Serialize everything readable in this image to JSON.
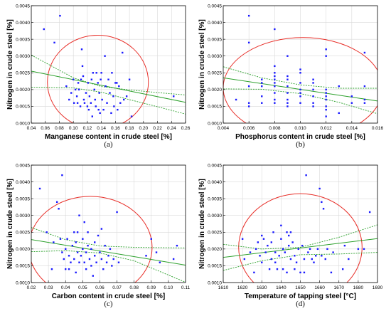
{
  "colors": {
    "points": "#1a1aff",
    "fit": "#2ca02c",
    "ellipse": "#e8302a",
    "grid": "#d9d9d9",
    "frame": "#000000"
  },
  "chart_data": [
    {
      "type": "scatter",
      "panel_label": "(a)",
      "xlabel": "Manganese content in crude steel [%]",
      "ylabel": "Nitrogen in crude steel [%]",
      "xlim": [
        0.04,
        0.26
      ],
      "ylim": [
        0.001,
        0.0045
      ],
      "xticks": [
        "0.04",
        "0.06",
        "0.08",
        "0.10",
        "0.12",
        "0.14",
        "0.16",
        "0.18",
        "0.20",
        "0.22",
        "0.24",
        "0.26"
      ],
      "yticks": [
        "0.0010",
        "0.0015",
        "0.0020",
        "0.0025",
        "0.0030",
        "0.0035",
        "0.0040",
        "0.0045"
      ],
      "grid": true,
      "regression": [
        [
          0.04,
          0.00255
        ],
        [
          0.26,
          0.00162
        ]
      ],
      "confidence_upper": [
        [
          0.04,
          0.00303
        ],
        [
          0.1,
          0.00235
        ],
        [
          0.14,
          0.00209
        ],
        [
          0.18,
          0.00199
        ],
        [
          0.22,
          0.00191
        ],
        [
          0.26,
          0.00184
        ]
      ],
      "confidence_lower": [
        [
          0.04,
          0.00207
        ],
        [
          0.1,
          0.00205
        ],
        [
          0.14,
          0.00192
        ],
        [
          0.18,
          0.0017
        ],
        [
          0.22,
          0.00149
        ],
        [
          0.26,
          0.00127
        ]
      ],
      "ellipse": {
        "cx": 0.135,
        "cy": 0.00222,
        "rx": 0.072,
        "ry": 0.0014
      },
      "points": [
        [
          0.058,
          0.0038
        ],
        [
          0.073,
          0.0034
        ],
        [
          0.081,
          0.0042
        ],
        [
          0.09,
          0.0021
        ],
        [
          0.094,
          0.0017
        ],
        [
          0.097,
          0.0019
        ],
        [
          0.1,
          0.0023
        ],
        [
          0.101,
          0.0016
        ],
        [
          0.103,
          0.002
        ],
        [
          0.105,
          0.0018
        ],
        [
          0.106,
          0.0016
        ],
        [
          0.107,
          0.0022
        ],
        [
          0.108,
          0.002
        ],
        [
          0.11,
          0.0015
        ],
        [
          0.111,
          0.0023
        ],
        [
          0.112,
          0.0032
        ],
        [
          0.113,
          0.0027
        ],
        [
          0.114,
          0.0024
        ],
        [
          0.115,
          0.0017
        ],
        [
          0.116,
          0.0016
        ],
        [
          0.118,
          0.0019
        ],
        [
          0.12,
          0.0015
        ],
        [
          0.121,
          0.0022
        ],
        [
          0.122,
          0.0014
        ],
        [
          0.123,
          0.0018
        ],
        [
          0.125,
          0.0016
        ],
        [
          0.126,
          0.0023
        ],
        [
          0.127,
          0.0012
        ],
        [
          0.128,
          0.0025
        ],
        [
          0.13,
          0.002
        ],
        [
          0.131,
          0.0017
        ],
        [
          0.132,
          0.0015
        ],
        [
          0.133,
          0.0025
        ],
        [
          0.135,
          0.0022
        ],
        [
          0.136,
          0.0014
        ],
        [
          0.137,
          0.0019
        ],
        [
          0.138,
          0.0013
        ],
        [
          0.139,
          0.0023
        ],
        [
          0.14,
          0.0025
        ],
        [
          0.141,
          0.0017
        ],
        [
          0.143,
          0.0014
        ],
        [
          0.145,
          0.003
        ],
        [
          0.146,
          0.0021
        ],
        [
          0.148,
          0.0016
        ],
        [
          0.15,
          0.0023
        ],
        [
          0.152,
          0.0019
        ],
        [
          0.154,
          0.0013
        ],
        [
          0.155,
          0.0025
        ],
        [
          0.157,
          0.0018
        ],
        [
          0.158,
          0.0015
        ],
        [
          0.16,
          0.0022
        ],
        [
          0.162,
          0.0022
        ],
        [
          0.163,
          0.0014
        ],
        [
          0.165,
          0.0021
        ],
        [
          0.167,
          0.0016
        ],
        [
          0.17,
          0.0031
        ],
        [
          0.172,
          0.0017
        ],
        [
          0.176,
          0.0018
        ],
        [
          0.18,
          0.0023
        ],
        [
          0.183,
          0.0012
        ],
        [
          0.243,
          0.0018
        ]
      ]
    },
    {
      "type": "scatter",
      "panel_label": "(b)",
      "xlabel": "Phosphorus content in crude steel [%]",
      "ylabel": "Nitrogen in crude steel [%]",
      "xlim": [
        0.004,
        0.016
      ],
      "ylim": [
        0.001,
        0.0045
      ],
      "xticks": [
        "0.004",
        "0.006",
        "0.008",
        "0.010",
        "0.012",
        "0.014",
        "0.016"
      ],
      "yticks": [
        "0.0010",
        "0.0015",
        "0.0020",
        "0.0025",
        "0.0030",
        "0.0035",
        "0.0040",
        "0.0045"
      ],
      "grid": true,
      "regression": [
        [
          0.004,
          0.00235
        ],
        [
          0.016,
          0.00166
        ]
      ],
      "confidence_upper": [
        [
          0.004,
          0.00268
        ],
        [
          0.007,
          0.00235
        ],
        [
          0.01,
          0.00214
        ],
        [
          0.013,
          0.00204
        ],
        [
          0.016,
          0.00204
        ]
      ],
      "confidence_lower": [
        [
          0.004,
          0.00202
        ],
        [
          0.007,
          0.00201
        ],
        [
          0.01,
          0.00188
        ],
        [
          0.013,
          0.00162
        ],
        [
          0.016,
          0.00128
        ]
      ],
      "ellipse": {
        "cx": 0.0102,
        "cy": 0.00205,
        "rx": 0.0062,
        "ry": 0.0015
      },
      "points": [
        [
          0.005,
          0.0017
        ],
        [
          0.006,
          0.0042
        ],
        [
          0.006,
          0.0034
        ],
        [
          0.006,
          0.0021
        ],
        [
          0.006,
          0.0016
        ],
        [
          0.006,
          0.0015
        ],
        [
          0.007,
          0.0023
        ],
        [
          0.007,
          0.0022
        ],
        [
          0.007,
          0.0021
        ],
        [
          0.007,
          0.0018
        ],
        [
          0.007,
          0.0016
        ],
        [
          0.008,
          0.0038
        ],
        [
          0.008,
          0.0027
        ],
        [
          0.008,
          0.0025
        ],
        [
          0.008,
          0.0024
        ],
        [
          0.008,
          0.0023
        ],
        [
          0.008,
          0.0022
        ],
        [
          0.008,
          0.0021
        ],
        [
          0.008,
          0.0019
        ],
        [
          0.008,
          0.0017
        ],
        [
          0.008,
          0.0016
        ],
        [
          0.009,
          0.003
        ],
        [
          0.009,
          0.0024
        ],
        [
          0.009,
          0.0023
        ],
        [
          0.009,
          0.0021
        ],
        [
          0.009,
          0.0019
        ],
        [
          0.009,
          0.0017
        ],
        [
          0.009,
          0.0016
        ],
        [
          0.009,
          0.0015
        ],
        [
          0.01,
          0.0026
        ],
        [
          0.01,
          0.0025
        ],
        [
          0.01,
          0.0022
        ],
        [
          0.01,
          0.002
        ],
        [
          0.01,
          0.0019
        ],
        [
          0.01,
          0.0018
        ],
        [
          0.01,
          0.0016
        ],
        [
          0.011,
          0.0023
        ],
        [
          0.011,
          0.0022
        ],
        [
          0.011,
          0.002
        ],
        [
          0.011,
          0.0018
        ],
        [
          0.011,
          0.0016
        ],
        [
          0.011,
          0.0015
        ],
        [
          0.012,
          0.0032
        ],
        [
          0.012,
          0.003
        ],
        [
          0.012,
          0.002
        ],
        [
          0.012,
          0.0019
        ],
        [
          0.012,
          0.0018
        ],
        [
          0.012,
          0.0017
        ],
        [
          0.012,
          0.0015
        ],
        [
          0.012,
          0.0014
        ],
        [
          0.012,
          0.0012
        ],
        [
          0.013,
          0.0021
        ],
        [
          0.013,
          0.0013
        ],
        [
          0.014,
          0.0018
        ],
        [
          0.014,
          0.0016
        ],
        [
          0.015,
          0.0031
        ],
        [
          0.015,
          0.0021
        ],
        [
          0.015,
          0.0017
        ],
        [
          0.015,
          0.0016
        ]
      ]
    },
    {
      "type": "scatter",
      "panel_label": "(c)",
      "xlabel": "Carbon content in crude steel [%]",
      "ylabel": "Nitrogen in crude steel [%]",
      "xlim": [
        0.02,
        0.11
      ],
      "ylim": [
        0.001,
        0.0045
      ],
      "xticks": [
        "0.02",
        "0.03",
        "0.04",
        "0.05",
        "0.06",
        "0.07",
        "0.08",
        "0.09",
        "0.10",
        "0.11"
      ],
      "yticks": [
        "0.0010",
        "0.0015",
        "0.0020",
        "0.0025",
        "0.0030",
        "0.0035",
        "0.0040",
        "0.0045"
      ],
      "grid": true,
      "regression": [
        [
          0.02,
          0.00228
        ],
        [
          0.11,
          0.00152
        ]
      ],
      "confidence_upper": [
        [
          0.02,
          0.00264
        ],
        [
          0.04,
          0.00228
        ],
        [
          0.06,
          0.00209
        ],
        [
          0.08,
          0.00205
        ],
        [
          0.11,
          0.00203
        ]
      ],
      "confidence_lower": [
        [
          0.02,
          0.00192
        ],
        [
          0.04,
          0.00195
        ],
        [
          0.06,
          0.00188
        ],
        [
          0.08,
          0.00165
        ],
        [
          0.11,
          0.00101
        ]
      ],
      "ellipse": {
        "cx": 0.0545,
        "cy": 0.00205,
        "rx": 0.036,
        "ry": 0.00152
      },
      "points": [
        [
          0.025,
          0.0038
        ],
        [
          0.029,
          0.0025
        ],
        [
          0.032,
          0.0014
        ],
        [
          0.033,
          0.0022
        ],
        [
          0.035,
          0.0034
        ],
        [
          0.036,
          0.0032
        ],
        [
          0.037,
          0.0023
        ],
        [
          0.038,
          0.0042
        ],
        [
          0.038,
          0.0019
        ],
        [
          0.039,
          0.0017
        ],
        [
          0.04,
          0.002
        ],
        [
          0.04,
          0.0014
        ],
        [
          0.041,
          0.0023
        ],
        [
          0.042,
          0.0014
        ],
        [
          0.042,
          0.0018
        ],
        [
          0.043,
          0.0016
        ],
        [
          0.044,
          0.0021
        ],
        [
          0.045,
          0.0025
        ],
        [
          0.045,
          0.0017
        ],
        [
          0.046,
          0.0022
        ],
        [
          0.046,
          0.0013
        ],
        [
          0.047,
          0.0019
        ],
        [
          0.047,
          0.0025
        ],
        [
          0.048,
          0.0016
        ],
        [
          0.048,
          0.003
        ],
        [
          0.049,
          0.0018
        ],
        [
          0.05,
          0.002
        ],
        [
          0.05,
          0.0023
        ],
        [
          0.051,
          0.0016
        ],
        [
          0.051,
          0.0028
        ],
        [
          0.052,
          0.0019
        ],
        [
          0.052,
          0.0014
        ],
        [
          0.053,
          0.0021
        ],
        [
          0.053,
          0.0025
        ],
        [
          0.054,
          0.0017
        ],
        [
          0.055,
          0.0015
        ],
        [
          0.055,
          0.002
        ],
        [
          0.056,
          0.0012
        ],
        [
          0.057,
          0.0022
        ],
        [
          0.057,
          0.0018
        ],
        [
          0.058,
          0.0016
        ],
        [
          0.059,
          0.0024
        ],
        [
          0.06,
          0.0019
        ],
        [
          0.061,
          0.0017
        ],
        [
          0.061,
          0.0026
        ],
        [
          0.062,
          0.0014
        ],
        [
          0.063,
          0.0021
        ],
        [
          0.064,
          0.0016
        ],
        [
          0.065,
          0.0018
        ],
        [
          0.066,
          0.002
        ],
        [
          0.067,
          0.0015
        ],
        [
          0.068,
          0.0017
        ],
        [
          0.07,
          0.0031
        ],
        [
          0.071,
          0.0016
        ],
        [
          0.087,
          0.0018
        ],
        [
          0.09,
          0.0023
        ],
        [
          0.093,
          0.0019
        ],
        [
          0.095,
          0.0016
        ],
        [
          0.103,
          0.0017
        ],
        [
          0.105,
          0.0021
        ]
      ]
    },
    {
      "type": "scatter",
      "panel_label": "(d)",
      "xlabel": "Temperature of tapping steel [°C]",
      "ylabel": "Nitrogen in crude steel [%]",
      "xlim": [
        1610,
        1690
      ],
      "ylim": [
        0.001,
        0.0045
      ],
      "xticks": [
        "1610",
        "1620",
        "1630",
        "1640",
        "1650",
        "1660",
        "1670",
        "1680",
        "1690"
      ],
      "yticks": [
        "0.0010",
        "0.0015",
        "0.0020",
        "0.0025",
        "0.0030",
        "0.0035",
        "0.0040",
        "0.0045"
      ],
      "grid": true,
      "regression": [
        [
          1610,
          0.00175
        ],
        [
          1690,
          0.00231
        ]
      ],
      "confidence_upper": [
        [
          1610,
          0.00214
        ],
        [
          1630,
          0.002
        ],
        [
          1650,
          0.00205
        ],
        [
          1670,
          0.00235
        ],
        [
          1690,
          0.00272
        ]
      ],
      "confidence_lower": [
        [
          1610,
          0.00136
        ],
        [
          1630,
          0.00165
        ],
        [
          1650,
          0.00183
        ],
        [
          1670,
          0.00185
        ],
        [
          1690,
          0.0019
        ]
      ],
      "ellipse": {
        "cx": 1650,
        "cy": 0.00205,
        "rx": 32,
        "ry": 0.0016
      },
      "points": [
        [
          1620,
          0.0023
        ],
        [
          1621,
          0.0017
        ],
        [
          1624,
          0.0019
        ],
        [
          1626,
          0.0013
        ],
        [
          1627,
          0.002
        ],
        [
          1628,
          0.0022
        ],
        [
          1629,
          0.0018
        ],
        [
          1630,
          0.0024
        ],
        [
          1630,
          0.0016
        ],
        [
          1631,
          0.0023
        ],
        [
          1632,
          0.0019
        ],
        [
          1633,
          0.0021
        ],
        [
          1634,
          0.0014
        ],
        [
          1635,
          0.0022
        ],
        [
          1635,
          0.0017
        ],
        [
          1636,
          0.0025
        ],
        [
          1637,
          0.0019
        ],
        [
          1637,
          0.0016
        ],
        [
          1638,
          0.0014
        ],
        [
          1639,
          0.0018
        ],
        [
          1640,
          0.0027
        ],
        [
          1640,
          0.0023
        ],
        [
          1641,
          0.002
        ],
        [
          1641,
          0.0014
        ],
        [
          1642,
          0.0019
        ],
        [
          1643,
          0.0025
        ],
        [
          1643,
          0.0013
        ],
        [
          1644,
          0.0024
        ],
        [
          1644,
          0.0021
        ],
        [
          1645,
          0.0017
        ],
        [
          1645,
          0.0025
        ],
        [
          1646,
          0.0022
        ],
        [
          1647,
          0.0018
        ],
        [
          1647,
          0.0014
        ],
        [
          1648,
          0.0016
        ],
        [
          1649,
          0.002
        ],
        [
          1650,
          0.0013
        ],
        [
          1651,
          0.0021
        ],
        [
          1652,
          0.0017
        ],
        [
          1652,
          0.0013
        ],
        [
          1653,
          0.0042
        ],
        [
          1654,
          0.0019
        ],
        [
          1655,
          0.002
        ],
        [
          1656,
          0.0017
        ],
        [
          1657,
          0.0016
        ],
        [
          1658,
          0.0018
        ],
        [
          1659,
          0.002
        ],
        [
          1660,
          0.0038
        ],
        [
          1661,
          0.0034
        ],
        [
          1661,
          0.0018
        ],
        [
          1662,
          0.0032
        ],
        [
          1663,
          0.0017
        ],
        [
          1664,
          0.002
        ],
        [
          1666,
          0.0013
        ],
        [
          1667,
          0.0019
        ],
        [
          1672,
          0.0014
        ],
        [
          1673,
          0.0021
        ],
        [
          1675,
          0.0017
        ],
        [
          1680,
          0.002
        ],
        [
          1683,
          0.002
        ],
        [
          1686,
          0.0031
        ]
      ]
    }
  ]
}
